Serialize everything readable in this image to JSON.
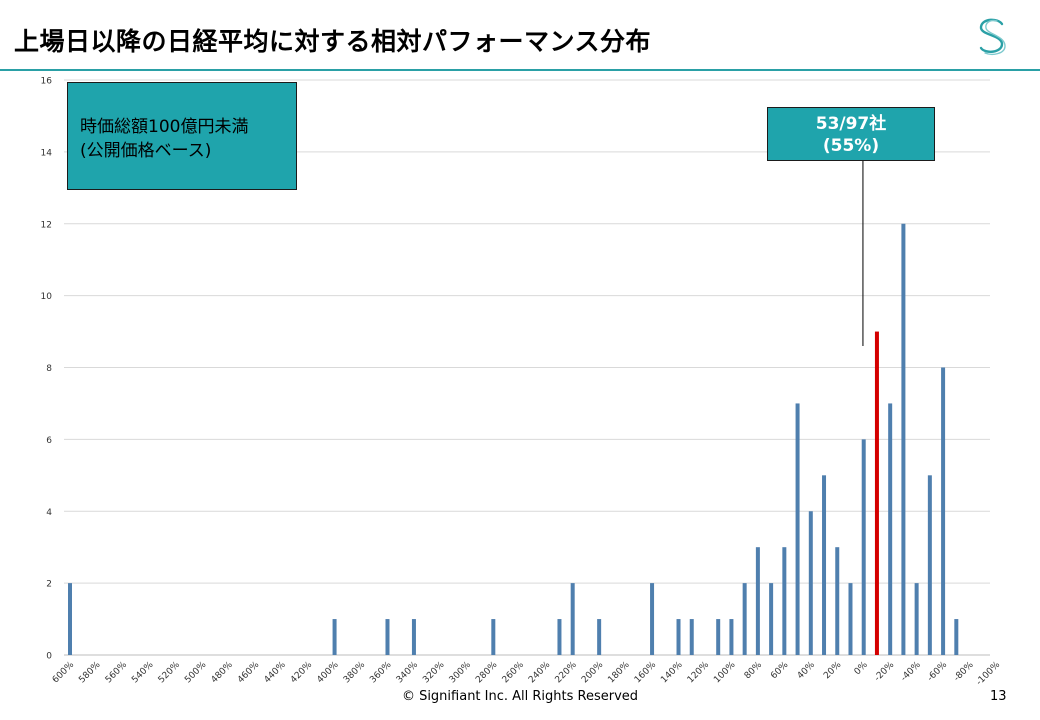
{
  "slide": {
    "title": "上場日以降の日経平均に対する相対パフォーマンス分布",
    "footer": "© Signifiant Inc. All Rights Reserved",
    "page_number": "13",
    "logo_icon": "signifiant-s-logo-icon",
    "accent_color": "#2aa0a6"
  },
  "info_box": {
    "line1": "時価総額100億円未満",
    "line2": "(公開価格ベース)",
    "fill_color": "#1fa4ac"
  },
  "callout": {
    "line1": "53/97社",
    "line2": "(55%)",
    "target_category": "-10%",
    "fill_color": "#1fa4ac"
  },
  "chart_data": {
    "type": "bar",
    "grid": true,
    "ylim": [
      0,
      16
    ],
    "yticks": [
      0,
      2,
      4,
      6,
      8,
      10,
      12,
      14,
      16
    ],
    "bar_color": "#4f7fae",
    "highlight_color": "#d40000",
    "highlight_category": "-10%",
    "tick_labels": [
      "600%",
      "580%",
      "560%",
      "540%",
      "520%",
      "500%",
      "480%",
      "460%",
      "440%",
      "420%",
      "400%",
      "380%",
      "360%",
      "340%",
      "320%",
      "300%",
      "280%",
      "260%",
      "240%",
      "220%",
      "200%",
      "180%",
      "160%",
      "140%",
      "120%",
      "100%",
      "80%",
      "60%",
      "40%",
      "20%",
      "0%",
      "-20%",
      "-40%",
      "-60%",
      "-80%",
      "-100%"
    ],
    "categories": [
      "600%",
      "590%",
      "580%",
      "570%",
      "560%",
      "550%",
      "540%",
      "530%",
      "520%",
      "510%",
      "500%",
      "490%",
      "480%",
      "470%",
      "460%",
      "450%",
      "440%",
      "430%",
      "420%",
      "410%",
      "400%",
      "390%",
      "380%",
      "370%",
      "360%",
      "350%",
      "340%",
      "330%",
      "320%",
      "310%",
      "300%",
      "290%",
      "280%",
      "270%",
      "260%",
      "250%",
      "240%",
      "230%",
      "220%",
      "210%",
      "200%",
      "190%",
      "180%",
      "170%",
      "160%",
      "150%",
      "140%",
      "130%",
      "120%",
      "110%",
      "100%",
      "90%",
      "80%",
      "70%",
      "60%",
      "50%",
      "40%",
      "30%",
      "20%",
      "10%",
      "0%",
      "-10%",
      "-20%",
      "-30%",
      "-40%",
      "-50%",
      "-60%",
      "-70%",
      "-80%",
      "-90%",
      "-100%"
    ],
    "values": [
      2,
      0,
      0,
      0,
      0,
      0,
      0,
      0,
      0,
      0,
      0,
      0,
      0,
      0,
      0,
      0,
      0,
      0,
      0,
      0,
      1,
      0,
      0,
      0,
      1,
      0,
      1,
      0,
      0,
      0,
      0,
      0,
      1,
      0,
      0,
      0,
      0,
      1,
      2,
      0,
      1,
      0,
      0,
      0,
      2,
      0,
      1,
      1,
      0,
      1,
      1,
      2,
      3,
      2,
      3,
      7,
      4,
      5,
      3,
      2,
      6,
      9,
      7,
      12,
      2,
      5,
      8,
      1,
      0,
      0,
      0
    ]
  }
}
